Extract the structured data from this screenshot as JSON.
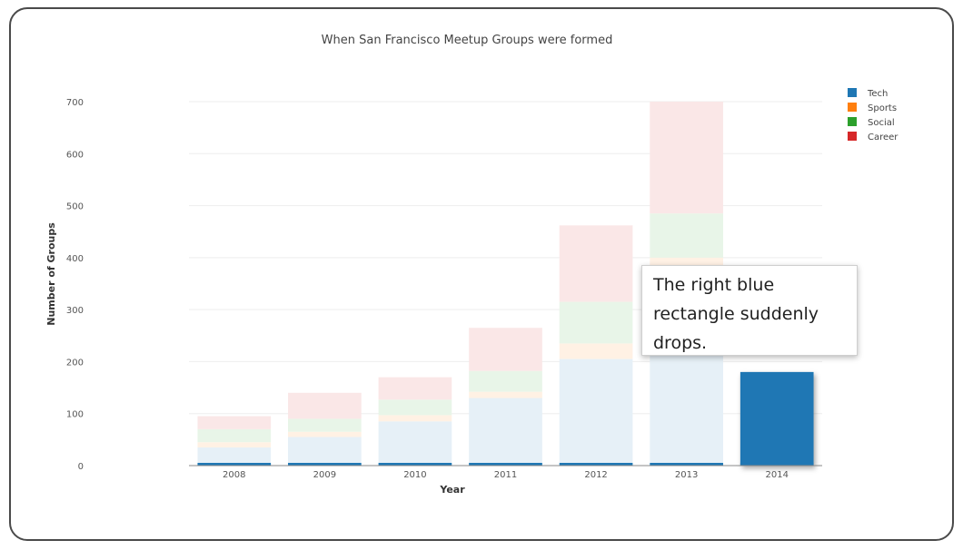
{
  "top_fragment": "",
  "chart_data": {
    "type": "bar",
    "stacked": true,
    "title": "When San Francisco Meetup Groups were formed",
    "xlabel": "Year",
    "ylabel": "Number of Groups",
    "ylim": [
      0,
      700
    ],
    "yticks": [
      0,
      100,
      200,
      300,
      400,
      500,
      600,
      700
    ],
    "categories": [
      "2008",
      "2009",
      "2010",
      "2011",
      "2012",
      "2013",
      "2014"
    ],
    "series": [
      {
        "name": "Tech",
        "color": "#1f77b4",
        "values": [
          35,
          55,
          85,
          130,
          205,
          320,
          180
        ]
      },
      {
        "name": "Sports",
        "color": "#ff7f0e",
        "values": [
          10,
          10,
          12,
          12,
          30,
          80,
          0
        ]
      },
      {
        "name": "Social",
        "color": "#2ca02c",
        "values": [
          25,
          25,
          30,
          40,
          80,
          85,
          0
        ]
      },
      {
        "name": "Career",
        "color": "#d62728",
        "values": [
          25,
          50,
          43,
          83,
          147,
          215,
          0
        ]
      }
    ],
    "highlighted_category": "2014",
    "legend_position": "top-right",
    "grid": true
  },
  "callout": {
    "text": "The right blue rectangle suddenly drops."
  }
}
